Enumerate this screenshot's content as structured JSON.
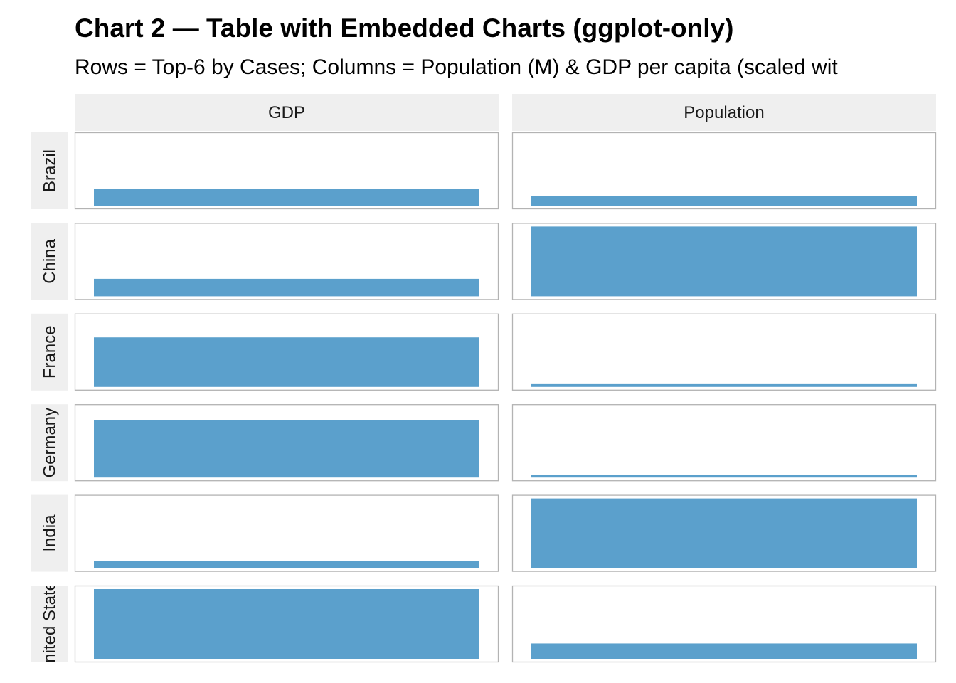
{
  "chart_data": {
    "type": "bar",
    "title": "Chart 2 — Table with Embedded Charts (ggplot-only)",
    "subtitle": "Rows = Top-6 by Cases; Columns = Population (M) & GDP per capita (scaled wit",
    "columns": [
      "GDP",
      "Population"
    ],
    "rows": [
      "Brazil",
      "China",
      "France",
      "Germany",
      "India",
      "United States"
    ],
    "value_scale": [
      0,
      1
    ],
    "series": [
      {
        "name": "GDP",
        "values": [
          0.24,
          0.25,
          0.71,
          0.82,
          0.1,
          1.0
        ]
      },
      {
        "name": "Population",
        "values": [
          0.14,
          1.0,
          0.04,
          0.04,
          1.0,
          0.22
        ]
      }
    ],
    "colors": {
      "bar": "#5ba0cc",
      "strip_background": "#efefef",
      "panel_border": "#b3b3b3",
      "panel_background": "#ffffff"
    }
  }
}
